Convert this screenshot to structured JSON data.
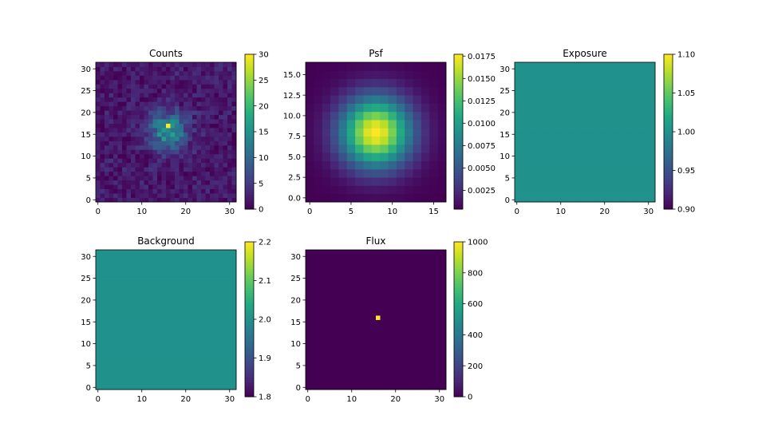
{
  "figure": {
    "background": "#ffffff"
  },
  "colormap": {
    "name": "viridis",
    "low": "#440154",
    "mid": "#21918c",
    "high": "#fde725"
  },
  "chart_data": [
    {
      "type": "heatmap",
      "title": "Counts",
      "shape": [
        32,
        32
      ],
      "xlim": [
        -0.5,
        31.5
      ],
      "ylim": [
        -0.5,
        31.5
      ],
      "xticks": [
        0,
        10,
        20,
        30
      ],
      "xticklabels": [
        "0",
        "10",
        "20",
        "30"
      ],
      "yticks": [
        0,
        5,
        10,
        15,
        20,
        25,
        30
      ],
      "yticklabels": [
        "0",
        "5",
        "10",
        "15",
        "20",
        "25",
        "30"
      ],
      "colorbar": {
        "vmin": 0,
        "vmax": 30,
        "ticks": [
          0,
          5,
          10,
          15,
          20,
          25,
          30
        ],
        "ticklabels": [
          "0",
          "5",
          "10",
          "15",
          "20",
          "25",
          "30"
        ]
      },
      "model": {
        "kind": "poisson-like",
        "background": 2,
        "source_center": [
          16,
          16
        ],
        "source_peak": 30,
        "sigma": 3,
        "seed": 7
      }
    },
    {
      "type": "heatmap",
      "title": "Psf",
      "shape": [
        17,
        17
      ],
      "xlim": [
        -0.5,
        16.5
      ],
      "ylim": [
        -0.5,
        16.5
      ],
      "xticks": [
        0,
        5,
        10,
        15
      ],
      "xticklabels": [
        "0",
        "5",
        "10",
        "15"
      ],
      "yticks": [
        0,
        2.5,
        5,
        7.5,
        10,
        12.5,
        15
      ],
      "yticklabels": [
        "0.0",
        "2.5",
        "5.0",
        "7.5",
        "10.0",
        "12.5",
        "15.0"
      ],
      "colorbar": {
        "vmin": 0.0004,
        "vmax": 0.0177,
        "ticks": [
          0.0025,
          0.005,
          0.0075,
          0.01,
          0.0125,
          0.015,
          0.0175
        ],
        "ticklabels": [
          "0.0025",
          "0.0050",
          "0.0075",
          "0.0100",
          "0.0125",
          "0.0150",
          "0.0175"
        ]
      },
      "model": {
        "kind": "gaussian",
        "center": [
          8,
          8
        ],
        "sigma": 3,
        "peak": 0.0177,
        "floor": 0.0004
      }
    },
    {
      "type": "heatmap",
      "title": "Exposure",
      "shape": [
        32,
        32
      ],
      "xlim": [
        -0.5,
        31.5
      ],
      "ylim": [
        -0.5,
        31.5
      ],
      "xticks": [
        0,
        10,
        20,
        30
      ],
      "xticklabels": [
        "0",
        "10",
        "20",
        "30"
      ],
      "yticks": [
        0,
        5,
        10,
        15,
        20,
        25,
        30
      ],
      "yticklabels": [
        "0",
        "5",
        "10",
        "15",
        "20",
        "25",
        "30"
      ],
      "colorbar": {
        "vmin": 0.9,
        "vmax": 1.1,
        "ticks": [
          0.9,
          0.95,
          1.0,
          1.05,
          1.1
        ],
        "ticklabels": [
          "0.90",
          "0.95",
          "1.00",
          "1.05",
          "1.10"
        ]
      },
      "model": {
        "kind": "constant",
        "value": 1.0
      }
    },
    {
      "type": "heatmap",
      "title": "Background",
      "shape": [
        32,
        32
      ],
      "xlim": [
        -0.5,
        31.5
      ],
      "ylim": [
        -0.5,
        31.5
      ],
      "xticks": [
        0,
        10,
        20,
        30
      ],
      "xticklabels": [
        "0",
        "10",
        "20",
        "30"
      ],
      "yticks": [
        0,
        5,
        10,
        15,
        20,
        25,
        30
      ],
      "yticklabels": [
        "0",
        "5",
        "10",
        "15",
        "20",
        "25",
        "30"
      ],
      "colorbar": {
        "vmin": 1.8,
        "vmax": 2.2,
        "ticks": [
          1.8,
          1.9,
          2.0,
          2.1,
          2.2
        ],
        "ticklabels": [
          "1.8",
          "1.9",
          "2.0",
          "2.1",
          "2.2"
        ]
      },
      "model": {
        "kind": "constant",
        "value": 2.0
      }
    },
    {
      "type": "heatmap",
      "title": "Flux",
      "shape": [
        32,
        32
      ],
      "xlim": [
        -0.5,
        31.5
      ],
      "ylim": [
        -0.5,
        31.5
      ],
      "xticks": [
        0,
        10,
        20,
        30
      ],
      "xticklabels": [
        "0",
        "10",
        "20",
        "30"
      ],
      "yticks": [
        0,
        5,
        10,
        15,
        20,
        25,
        30
      ],
      "yticklabels": [
        "0",
        "5",
        "10",
        "15",
        "20",
        "25",
        "30"
      ],
      "colorbar": {
        "vmin": 0,
        "vmax": 1000,
        "ticks": [
          0,
          200,
          400,
          600,
          800,
          1000
        ],
        "ticklabels": [
          "0",
          "200",
          "400",
          "600",
          "800",
          "1000"
        ]
      },
      "model": {
        "kind": "point",
        "background": 0,
        "point": [
          16,
          16
        ],
        "value": 1000
      }
    }
  ]
}
